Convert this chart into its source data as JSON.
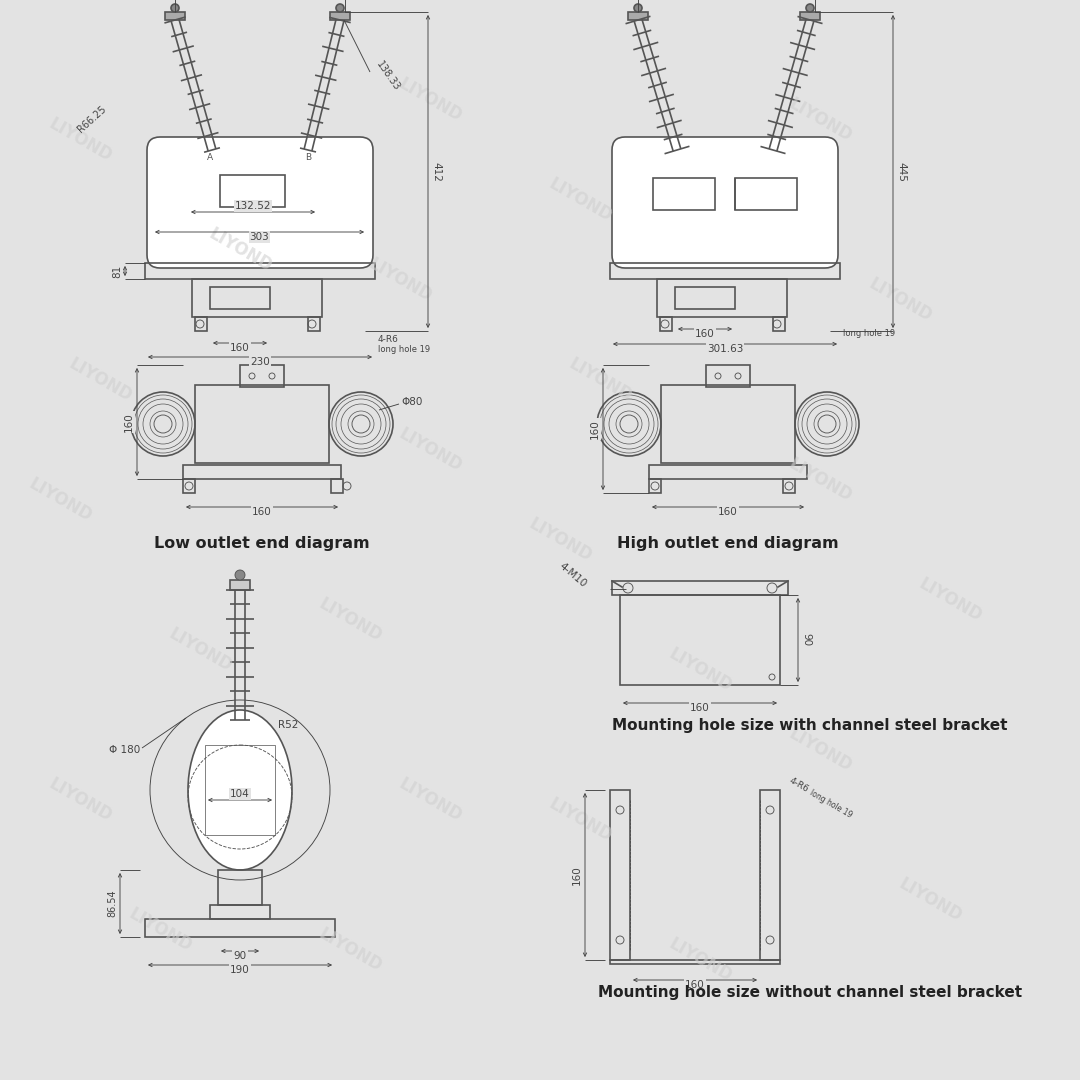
{
  "bg_color": "#e3e3e3",
  "lc": "#555555",
  "dc": "#444444",
  "tc": "#222222",
  "wc": "#d0d0d0",
  "lw": 1.2,
  "lwd": 0.65,
  "fsd": 7.5,
  "fsl": 11.5,
  "title1": "Low outlet end diagram",
  "title2": "High outlet end diagram",
  "title3": "Mounting hole size with channel steel bracket",
  "title4": "Mounting hole size without channel steel bracket"
}
